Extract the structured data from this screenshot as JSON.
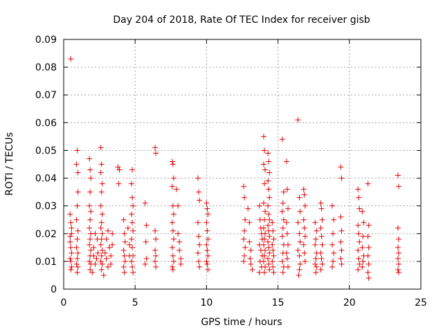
{
  "chart_data": {
    "type": "scatter",
    "title": "Day 204 of 2018, Rate Of TEC Index for receiver gisb",
    "xlabel": "GPS time / hours",
    "ylabel": "ROTI / TECUs",
    "xlim": [
      0,
      25
    ],
    "ylim": [
      0,
      0.09
    ],
    "xticks": [
      0,
      5,
      10,
      15,
      20,
      25
    ],
    "xtick_labels": [
      "0",
      "5",
      "10",
      "15",
      "20",
      "25"
    ],
    "yticks": [
      0,
      0.01,
      0.02,
      0.03,
      0.04,
      0.05,
      0.06,
      0.07,
      0.08,
      0.09
    ],
    "ytick_labels": [
      "0",
      "0.01",
      "0.02",
      "0.03",
      "0.04",
      "0.05",
      "0.06",
      "0.07",
      "0.08",
      "0.09"
    ],
    "grid": true,
    "marker": "plus",
    "color": "#e00000",
    "points": [
      [
        0.5,
        0.083
      ],
      [
        0.45,
        0.027
      ],
      [
        0.5,
        0.024
      ],
      [
        0.55,
        0.02
      ],
      [
        0.45,
        0.017
      ],
      [
        0.5,
        0.015
      ],
      [
        0.55,
        0.013
      ],
      [
        0.45,
        0.011
      ],
      [
        0.5,
        0.01
      ],
      [
        0.55,
        0.008
      ],
      [
        0.5,
        0.007
      ],
      [
        0.45,
        0.019
      ],
      [
        0.55,
        0.022
      ],
      [
        0.95,
        0.05
      ],
      [
        0.9,
        0.045
      ],
      [
        1.0,
        0.042
      ],
      [
        1.0,
        0.035
      ],
      [
        0.95,
        0.03
      ],
      [
        0.9,
        0.025
      ],
      [
        1.0,
        0.021
      ],
      [
        0.95,
        0.018
      ],
      [
        0.9,
        0.015
      ],
      [
        1.0,
        0.013
      ],
      [
        0.95,
        0.011
      ],
      [
        0.9,
        0.009
      ],
      [
        1.0,
        0.008
      ],
      [
        0.95,
        0.006
      ],
      [
        1.8,
        0.047
      ],
      [
        1.85,
        0.043
      ],
      [
        1.9,
        0.04
      ],
      [
        1.85,
        0.035
      ],
      [
        1.8,
        0.03
      ],
      [
        1.9,
        0.028
      ],
      [
        1.85,
        0.025
      ],
      [
        1.8,
        0.022
      ],
      [
        1.9,
        0.02
      ],
      [
        1.85,
        0.018
      ],
      [
        1.8,
        0.016
      ],
      [
        1.9,
        0.014
      ],
      [
        1.85,
        0.012
      ],
      [
        1.8,
        0.01
      ],
      [
        1.9,
        0.009
      ],
      [
        1.85,
        0.007
      ],
      [
        2.0,
        0.006
      ],
      [
        2.1,
        0.015
      ],
      [
        2.2,
        0.02
      ],
      [
        2.1,
        0.012
      ],
      [
        2.2,
        0.009
      ],
      [
        2.3,
        0.011
      ],
      [
        2.35,
        0.018
      ],
      [
        2.4,
        0.013
      ],
      [
        2.6,
        0.051
      ],
      [
        2.65,
        0.045
      ],
      [
        2.6,
        0.042
      ],
      [
        2.7,
        0.038
      ],
      [
        2.65,
        0.035
      ],
      [
        2.6,
        0.03
      ],
      [
        2.7,
        0.027
      ],
      [
        2.65,
        0.024
      ],
      [
        2.6,
        0.022
      ],
      [
        2.7,
        0.02
      ],
      [
        2.65,
        0.018
      ],
      [
        2.6,
        0.016
      ],
      [
        2.7,
        0.014
      ],
      [
        2.65,
        0.012
      ],
      [
        2.6,
        0.01
      ],
      [
        2.7,
        0.009
      ],
      [
        2.65,
        0.007
      ],
      [
        2.8,
        0.005
      ],
      [
        2.9,
        0.013
      ],
      [
        3.0,
        0.018
      ],
      [
        3.1,
        0.021
      ],
      [
        3.0,
        0.011
      ],
      [
        3.1,
        0.008
      ],
      [
        3.2,
        0.015
      ],
      [
        3.3,
        0.012
      ],
      [
        3.3,
        0.009
      ],
      [
        3.4,
        0.02
      ],
      [
        3.4,
        0.016
      ],
      [
        3.8,
        0.044
      ],
      [
        3.85,
        0.038
      ],
      [
        3.9,
        0.043
      ],
      [
        4.2,
        0.025
      ],
      [
        4.25,
        0.02
      ],
      [
        4.3,
        0.017
      ],
      [
        4.2,
        0.014
      ],
      [
        4.25,
        0.012
      ],
      [
        4.3,
        0.01
      ],
      [
        4.2,
        0.008
      ],
      [
        4.25,
        0.006
      ],
      [
        4.5,
        0.022
      ],
      [
        4.6,
        0.016
      ],
      [
        4.6,
        0.012
      ],
      [
        4.8,
        0.043
      ],
      [
        4.75,
        0.038
      ],
      [
        4.8,
        0.033
      ],
      [
        4.85,
        0.03
      ],
      [
        4.75,
        0.027
      ],
      [
        4.8,
        0.024
      ],
      [
        4.85,
        0.021
      ],
      [
        4.75,
        0.018
      ],
      [
        4.8,
        0.015
      ],
      [
        4.85,
        0.012
      ],
      [
        4.75,
        0.01
      ],
      [
        4.8,
        0.008
      ],
      [
        4.85,
        0.006
      ],
      [
        5.7,
        0.031
      ],
      [
        5.8,
        0.023
      ],
      [
        5.75,
        0.017
      ],
      [
        5.8,
        0.011
      ],
      [
        5.7,
        0.009
      ],
      [
        6.4,
        0.051
      ],
      [
        6.45,
        0.049
      ],
      [
        6.4,
        0.021
      ],
      [
        6.45,
        0.018
      ],
      [
        6.4,
        0.014
      ],
      [
        6.45,
        0.012
      ],
      [
        6.4,
        0.01
      ],
      [
        6.45,
        0.008
      ],
      [
        7.6,
        0.046
      ],
      [
        7.65,
        0.045
      ],
      [
        7.7,
        0.04
      ],
      [
        7.6,
        0.037
      ],
      [
        7.65,
        0.03
      ],
      [
        7.7,
        0.027
      ],
      [
        7.6,
        0.024
      ],
      [
        7.65,
        0.021
      ],
      [
        7.7,
        0.018
      ],
      [
        7.6,
        0.015
      ],
      [
        7.65,
        0.012
      ],
      [
        7.7,
        0.01
      ],
      [
        7.6,
        0.008
      ],
      [
        7.65,
        0.007
      ],
      [
        7.9,
        0.036
      ],
      [
        8.0,
        0.03
      ],
      [
        8.0,
        0.02
      ],
      [
        8.1,
        0.017
      ],
      [
        8.1,
        0.014
      ],
      [
        8.2,
        0.011
      ],
      [
        8.2,
        0.009
      ],
      [
        9.4,
        0.04
      ],
      [
        9.45,
        0.035
      ],
      [
        9.5,
        0.032
      ],
      [
        9.4,
        0.024
      ],
      [
        9.45,
        0.019
      ],
      [
        9.5,
        0.016
      ],
      [
        9.4,
        0.013
      ],
      [
        9.45,
        0.01
      ],
      [
        9.5,
        0.008
      ],
      [
        10.0,
        0.031
      ],
      [
        10.05,
        0.029
      ],
      [
        10.1,
        0.027
      ],
      [
        10.0,
        0.024
      ],
      [
        10.05,
        0.021
      ],
      [
        10.1,
        0.018
      ],
      [
        10.0,
        0.016
      ],
      [
        10.05,
        0.014
      ],
      [
        10.1,
        0.012
      ],
      [
        10.0,
        0.01
      ],
      [
        10.05,
        0.009
      ],
      [
        10.1,
        0.007
      ],
      [
        12.6,
        0.037
      ],
      [
        12.65,
        0.033
      ],
      [
        12.7,
        0.025
      ],
      [
        12.65,
        0.021
      ],
      [
        12.6,
        0.018
      ],
      [
        12.7,
        0.015
      ],
      [
        12.65,
        0.012
      ],
      [
        12.6,
        0.01
      ],
      [
        12.9,
        0.029
      ],
      [
        13.0,
        0.024
      ],
      [
        13.0,
        0.017
      ],
      [
        13.1,
        0.014
      ],
      [
        13.05,
        0.011
      ],
      [
        13.1,
        0.009
      ],
      [
        13.2,
        0.007
      ],
      [
        13.7,
        0.03
      ],
      [
        13.75,
        0.025
      ],
      [
        13.8,
        0.022
      ],
      [
        13.85,
        0.02
      ],
      [
        13.9,
        0.018
      ],
      [
        13.7,
        0.016
      ],
      [
        13.8,
        0.014
      ],
      [
        13.9,
        0.012
      ],
      [
        13.75,
        0.01
      ],
      [
        13.85,
        0.008
      ],
      [
        13.7,
        0.006
      ],
      [
        14.0,
        0.055
      ],
      [
        14.05,
        0.05
      ],
      [
        14.0,
        0.045
      ],
      [
        14.1,
        0.043
      ],
      [
        14.05,
        0.038
      ],
      [
        14.0,
        0.031
      ],
      [
        14.1,
        0.028
      ],
      [
        14.05,
        0.025
      ],
      [
        14.0,
        0.022
      ],
      [
        14.1,
        0.02
      ],
      [
        14.05,
        0.018
      ],
      [
        14.0,
        0.016
      ],
      [
        14.1,
        0.014
      ],
      [
        14.05,
        0.012
      ],
      [
        14.0,
        0.01
      ],
      [
        14.1,
        0.008
      ],
      [
        14.05,
        0.006
      ],
      [
        14.3,
        0.049
      ],
      [
        14.35,
        0.046
      ],
      [
        14.4,
        0.042
      ],
      [
        14.3,
        0.039
      ],
      [
        14.35,
        0.036
      ],
      [
        14.4,
        0.033
      ],
      [
        14.3,
        0.03
      ],
      [
        14.35,
        0.027
      ],
      [
        14.4,
        0.025
      ],
      [
        14.3,
        0.023
      ],
      [
        14.35,
        0.021
      ],
      [
        14.4,
        0.019
      ],
      [
        14.3,
        0.017
      ],
      [
        14.35,
        0.015
      ],
      [
        14.4,
        0.013
      ],
      [
        14.3,
        0.011
      ],
      [
        14.35,
        0.009
      ],
      [
        14.4,
        0.007
      ],
      [
        14.6,
        0.024
      ],
      [
        14.65,
        0.021
      ],
      [
        14.7,
        0.018
      ],
      [
        14.6,
        0.016
      ],
      [
        14.65,
        0.014
      ],
      [
        14.7,
        0.012
      ],
      [
        14.6,
        0.01
      ],
      [
        14.65,
        0.008
      ],
      [
        14.7,
        0.006
      ],
      [
        15.3,
        0.054
      ],
      [
        15.4,
        0.035
      ],
      [
        15.35,
        0.031
      ],
      [
        15.3,
        0.028
      ],
      [
        15.4,
        0.025
      ],
      [
        15.35,
        0.022
      ],
      [
        15.3,
        0.019
      ],
      [
        15.4,
        0.016
      ],
      [
        15.35,
        0.013
      ],
      [
        15.3,
        0.01
      ],
      [
        15.4,
        0.008
      ],
      [
        15.35,
        0.006
      ],
      [
        15.6,
        0.046
      ],
      [
        15.65,
        0.036
      ],
      [
        15.7,
        0.029
      ],
      [
        15.6,
        0.024
      ],
      [
        15.65,
        0.02
      ],
      [
        15.7,
        0.016
      ],
      [
        15.6,
        0.013
      ],
      [
        15.65,
        0.011
      ],
      [
        15.7,
        0.008
      ],
      [
        16.4,
        0.061
      ],
      [
        16.5,
        0.033
      ],
      [
        16.55,
        0.028
      ],
      [
        16.4,
        0.024
      ],
      [
        16.5,
        0.02
      ],
      [
        16.55,
        0.017
      ],
      [
        16.4,
        0.014
      ],
      [
        16.5,
        0.012
      ],
      [
        16.55,
        0.009
      ],
      [
        16.5,
        0.007
      ],
      [
        16.45,
        0.005
      ],
      [
        16.8,
        0.036
      ],
      [
        16.85,
        0.034
      ],
      [
        16.9,
        0.03
      ],
      [
        16.8,
        0.025
      ],
      [
        16.85,
        0.022
      ],
      [
        16.9,
        0.019
      ],
      [
        16.8,
        0.016
      ],
      [
        16.85,
        0.013
      ],
      [
        16.9,
        0.01
      ],
      [
        17.6,
        0.024
      ],
      [
        17.7,
        0.021
      ],
      [
        17.65,
        0.018
      ],
      [
        17.6,
        0.016
      ],
      [
        17.7,
        0.013
      ],
      [
        17.65,
        0.011
      ],
      [
        17.6,
        0.009
      ],
      [
        17.7,
        0.008
      ],
      [
        17.65,
        0.006
      ],
      [
        18.0,
        0.031
      ],
      [
        18.05,
        0.029
      ],
      [
        18.1,
        0.025
      ],
      [
        18.0,
        0.022
      ],
      [
        18.05,
        0.019
      ],
      [
        18.1,
        0.016
      ],
      [
        18.0,
        0.013
      ],
      [
        18.05,
        0.011
      ],
      [
        18.1,
        0.009
      ],
      [
        18.0,
        0.007
      ],
      [
        18.8,
        0.03
      ],
      [
        18.9,
        0.025
      ],
      [
        18.85,
        0.02
      ],
      [
        18.8,
        0.016
      ],
      [
        18.9,
        0.013
      ],
      [
        18.85,
        0.01
      ],
      [
        18.8,
        0.008
      ],
      [
        19.4,
        0.044
      ],
      [
        19.45,
        0.04
      ],
      [
        19.4,
        0.026
      ],
      [
        19.45,
        0.021
      ],
      [
        19.4,
        0.017
      ],
      [
        19.45,
        0.014
      ],
      [
        19.4,
        0.011
      ],
      [
        19.45,
        0.009
      ],
      [
        20.6,
        0.036
      ],
      [
        20.65,
        0.033
      ],
      [
        20.7,
        0.029
      ],
      [
        20.6,
        0.023
      ],
      [
        20.65,
        0.02
      ],
      [
        20.7,
        0.017
      ],
      [
        20.6,
        0.014
      ],
      [
        20.65,
        0.011
      ],
      [
        20.7,
        0.009
      ],
      [
        20.6,
        0.007
      ],
      [
        20.9,
        0.028
      ],
      [
        21.0,
        0.024
      ],
      [
        20.95,
        0.019
      ],
      [
        20.9,
        0.015
      ],
      [
        21.0,
        0.012
      ],
      [
        20.95,
        0.01
      ],
      [
        20.9,
        0.008
      ],
      [
        21.3,
        0.038
      ],
      [
        21.35,
        0.023
      ],
      [
        21.3,
        0.019
      ],
      [
        21.35,
        0.015
      ],
      [
        21.3,
        0.012
      ],
      [
        21.35,
        0.009
      ],
      [
        21.3,
        0.006
      ],
      [
        21.35,
        0.004
      ],
      [
        23.4,
        0.041
      ],
      [
        23.45,
        0.037
      ],
      [
        23.4,
        0.022
      ],
      [
        23.45,
        0.018
      ],
      [
        23.4,
        0.015
      ],
      [
        23.45,
        0.013
      ],
      [
        23.4,
        0.011
      ],
      [
        23.45,
        0.009
      ],
      [
        23.4,
        0.007
      ],
      [
        23.45,
        0.006
      ]
    ]
  }
}
